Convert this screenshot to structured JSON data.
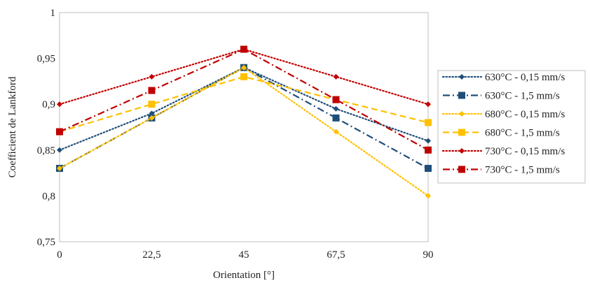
{
  "chart_data": {
    "type": "line",
    "title": "",
    "xlabel": "Orientation [°]",
    "ylabel": "Coefficient de Lankford",
    "x": [
      0,
      22.5,
      45,
      67.5,
      90
    ],
    "xticklabels": [
      "0",
      "22,5",
      "45",
      "67,5",
      "90"
    ],
    "yticklabels": [
      "0,75",
      "0,8",
      "0,85",
      "0,9",
      "0,95",
      "1"
    ],
    "xlim": [
      0,
      90
    ],
    "ylim": [
      0.75,
      1
    ],
    "grid": "none",
    "legend_position": "right",
    "series": [
      {
        "name": "630°C - 0,15 mm/s",
        "values": [
          0.85,
          0.89,
          0.94,
          0.895,
          0.86
        ],
        "color": "#1f4e79",
        "marker": "diamond",
        "dash": "dotted"
      },
      {
        "name": "630°C - 1,5 mm/s",
        "values": [
          0.83,
          0.885,
          0.94,
          0.885,
          0.83
        ],
        "color": "#1f4e79",
        "marker": "square",
        "dash": "dash-dot"
      },
      {
        "name": "680°C - 0,15 mm/s",
        "values": [
          0.83,
          0.885,
          0.94,
          0.87,
          0.8
        ],
        "color": "#ffc000",
        "marker": "diamond",
        "dash": "dotted"
      },
      {
        "name": "680°C - 1,5 mm/s",
        "values": [
          0.87,
          0.9,
          0.93,
          0.905,
          0.88
        ],
        "color": "#ffc000",
        "marker": "square",
        "dash": "dashed"
      },
      {
        "name": "730°C - 0,15 mm/s",
        "values": [
          0.9,
          0.93,
          0.96,
          0.93,
          0.9
        ],
        "color": "#c00000",
        "marker": "diamond",
        "dash": "dotted"
      },
      {
        "name": "730°C - 1,5 mm/s",
        "values": [
          0.87,
          0.915,
          0.96,
          0.905,
          0.85
        ],
        "color": "#c00000",
        "marker": "square",
        "dash": "dash-dot"
      }
    ]
  }
}
